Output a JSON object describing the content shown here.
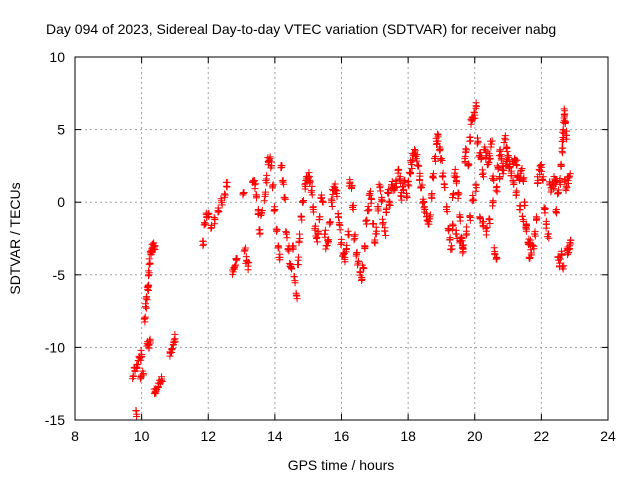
{
  "chart_data": {
    "type": "scatter",
    "title": "Day 094 of 2023, Sidereal Day-to-day VTEC variation (SDTVAR) for receiver nabg",
    "xlabel": "GPS time / hours",
    "ylabel": "SDTVAR / TECUs",
    "xlim": [
      8,
      24
    ],
    "ylim": [
      -15,
      10
    ],
    "xticks": [
      8,
      10,
      12,
      14,
      16,
      18,
      20,
      22,
      24
    ],
    "yticks": [
      -15,
      -10,
      -5,
      0,
      5,
      10
    ],
    "xtick_labels": [
      "8",
      "10",
      "12",
      "14",
      "16",
      "18",
      "20",
      "22",
      "24"
    ],
    "ytick_labels": [
      "-15",
      "-10",
      "-5",
      "0",
      "5",
      "10"
    ],
    "grid": true,
    "marker": "+",
    "color": "#ff0000",
    "series": [
      {
        "name": "SDTVAR",
        "x": [
          9.75,
          9.8,
          9.85,
          9.9,
          9.95,
          10.0,
          10.05,
          9.85,
          9.98,
          10.1,
          10.12,
          10.15,
          10.18,
          10.2,
          10.22,
          10.25,
          10.28,
          10.3,
          10.33,
          10.36,
          10.4,
          10.18,
          10.22,
          10.26,
          10.4,
          10.45,
          10.5,
          10.55,
          10.6,
          10.85,
          10.9,
          10.95,
          11.0,
          11.85,
          11.9,
          11.95,
          12.0,
          12.1,
          12.2,
          12.3,
          12.4,
          12.5,
          12.55,
          12.75,
          12.8,
          12.85,
          13.05,
          13.1,
          13.15,
          13.2,
          13.35,
          13.4,
          13.45,
          13.5,
          13.55,
          13.6,
          13.7,
          13.75,
          13.8,
          13.85,
          13.9,
          13.95,
          14.0,
          14.05,
          14.1,
          14.15,
          14.2,
          14.25,
          14.3,
          14.35,
          14.4,
          14.45,
          14.5,
          14.55,
          14.6,
          14.65,
          14.7,
          14.75,
          14.8,
          14.85,
          14.9,
          14.95,
          15.0,
          15.05,
          15.1,
          15.15,
          15.2,
          15.25,
          15.3,
          15.35,
          15.4,
          15.45,
          15.5,
          15.55,
          15.6,
          15.65,
          15.7,
          15.75,
          15.8,
          15.85,
          15.9,
          15.95,
          16.0,
          16.05,
          16.1,
          16.15,
          16.2,
          16.25,
          16.3,
          16.35,
          16.4,
          16.45,
          16.5,
          16.55,
          16.6,
          16.65,
          16.7,
          16.75,
          16.8,
          16.85,
          16.9,
          16.95,
          17.0,
          17.05,
          17.1,
          17.15,
          17.2,
          17.25,
          17.3,
          17.35,
          17.4,
          17.45,
          17.5,
          17.55,
          17.6,
          17.65,
          17.7,
          17.75,
          17.8,
          17.85,
          17.9,
          17.95,
          18.0,
          18.05,
          18.1,
          18.15,
          18.2,
          18.25,
          18.3,
          18.35,
          18.4,
          18.45,
          18.5,
          18.55,
          18.6,
          18.65,
          18.7,
          18.75,
          18.8,
          18.85,
          18.9,
          18.95,
          19.0,
          19.05,
          19.1,
          19.15,
          19.2,
          19.25,
          19.3,
          19.35,
          19.4,
          19.45,
          19.5,
          19.55,
          19.6,
          19.65,
          19.7,
          19.75,
          19.8,
          19.85,
          19.9,
          19.95,
          20.0,
          20.05,
          20.1,
          20.15,
          20.2,
          20.25,
          20.3,
          20.35,
          20.4,
          20.45,
          20.5,
          20.55,
          20.6,
          20.65,
          20.7,
          20.75,
          20.8,
          20.85,
          20.9,
          20.95,
          21.0,
          21.05,
          21.1,
          21.15,
          21.2,
          21.25,
          21.3,
          21.35,
          21.4,
          21.45,
          21.5,
          21.55,
          21.6,
          21.65,
          21.7,
          21.75,
          21.8,
          21.85,
          21.9,
          21.95,
          22.0,
          22.05,
          22.1,
          22.15,
          22.2,
          22.25,
          22.3,
          22.35,
          22.4,
          22.45,
          22.5,
          22.55,
          22.6,
          22.65,
          22.7,
          22.75,
          22.8,
          22.85
        ],
        "y": [
          -12.0,
          -11.6,
          -11.2,
          -10.9,
          -10.7,
          -10.5,
          -11.8,
          -14.6,
          -12.0,
          -8.0,
          -7.2,
          -6.5,
          -6.0,
          -5.8,
          -5.0,
          -4.2,
          -3.6,
          -3.3,
          -3.1,
          -3.0,
          -3.0,
          -9.6,
          -9.8,
          -9.7,
          -13.1,
          -12.9,
          -12.7,
          -12.5,
          -12.3,
          -10.6,
          -10.1,
          -9.8,
          -9.4,
          -2.7,
          -1.5,
          -1.0,
          -0.8,
          -1.6,
          -1.2,
          -0.4,
          0.1,
          0.5,
          1.1,
          -4.8,
          -4.4,
          -4.0,
          0.6,
          -3.3,
          -4.0,
          -4.4,
          1.5,
          1.2,
          0.5,
          -0.6,
          -1.9,
          -0.8,
          0.4,
          1.6,
          2.8,
          3.0,
          2.5,
          1.2,
          -0.5,
          -2.0,
          -3.0,
          -3.8,
          2.4,
          1.5,
          0.3,
          -2.2,
          -3.2,
          -4.4,
          -4.6,
          -3.0,
          -5.4,
          -6.4,
          -4.0,
          -2.5,
          -1.0,
          0.0,
          1.2,
          1.6,
          1.8,
          1.5,
          0.8,
          -0.5,
          -1.8,
          -2.5,
          -2.0,
          -1.0,
          0.5,
          0.0,
          -2.2,
          -3.0,
          -2.8,
          -1.5,
          0.0,
          0.8,
          1.0,
          0.6,
          -0.8,
          -1.6,
          -2.8,
          -3.5,
          -3.8,
          -3.2,
          -2.0,
          1.3,
          1.0,
          -0.5,
          -2.5,
          -3.5,
          -4.2,
          -4.8,
          -5.2,
          -4.5,
          -3.0,
          -1.5,
          -0.3,
          0.6,
          0.2,
          -1.5,
          -2.6,
          -2.0,
          -0.6,
          1.0,
          0.2,
          -1.4,
          -2.0,
          -0.5,
          0.6,
          0.0,
          1.2,
          0.8,
          1.0,
          1.3,
          2.0,
          1.6,
          0.4,
          0.8,
          1.5,
          0.6,
          1.2,
          2.0,
          2.6,
          3.2,
          3.4,
          3.0,
          2.5,
          1.8,
          1.0,
          0.2,
          -0.5,
          -1.0,
          -1.5,
          -1.0,
          0.5,
          1.8,
          3.0,
          4.2,
          4.5,
          3.8,
          3.0,
          2.0,
          1.0,
          -0.5,
          -1.8,
          -2.6,
          -3.0,
          0.5,
          2.0,
          1.5,
          0.5,
          -1.0,
          -2.5,
          -3.2,
          3.0,
          3.6,
          2.5,
          4.2,
          5.6,
          5.8,
          6.0,
          6.6,
          4.2,
          3.4,
          3.0,
          2.0,
          3.8,
          3.2,
          2.6,
          3.2,
          4.0,
          1.8,
          -3.4,
          -3.8,
          2.4,
          3.5,
          3.0,
          2.5,
          4.4,
          3.8,
          3.2,
          2.6,
          2.0,
          2.8,
          3.0,
          2.6,
          1.8,
          1.5,
          2.2,
          1.6,
          0.0,
          -1.5,
          -2.8,
          -3.8,
          -3.5,
          -3.0,
          -2.2,
          -1.0,
          1.5,
          2.2,
          2.4,
          1.5,
          -0.5,
          -1.5,
          -2.2,
          1.4,
          1.0,
          1.2,
          1.6,
          1.5,
          -3.8,
          -4.2,
          -3.6,
          -4.6,
          1.4,
          1.1,
          1.5,
          1.8
        ],
        "extra_x": [
          20.15,
          20.25,
          20.35,
          20.45,
          20.55,
          20.65,
          20.75,
          20.85,
          20.95,
          21.05,
          21.15,
          21.25,
          21.35,
          21.45,
          21.55,
          21.65,
          19.35,
          19.45,
          19.55,
          19.65,
          19.75,
          19.85,
          19.95,
          20.05,
          22.45,
          22.5,
          22.55,
          22.6,
          22.62,
          22.64,
          22.66,
          22.68,
          22.7,
          22.72,
          22.75,
          22.78,
          22.8,
          22.85,
          22.88
        ],
        "extra_y": [
          -1.0,
          -1.6,
          -2.0,
          -1.2,
          0.0,
          1.0,
          1.6,
          2.2,
          2.8,
          2.4,
          1.5,
          0.5,
          -0.5,
          -1.2,
          -2.0,
          -2.8,
          -1.6,
          -2.2,
          -2.8,
          -3.4,
          -2.0,
          -1.0,
          0.2,
          1.0,
          -0.5,
          0.6,
          1.5,
          2.5,
          3.5,
          4.2,
          5.0,
          5.8,
          6.3,
          5.5,
          4.6,
          -3.2,
          -3.5,
          -3.0,
          -2.6
        ]
      }
    ]
  }
}
